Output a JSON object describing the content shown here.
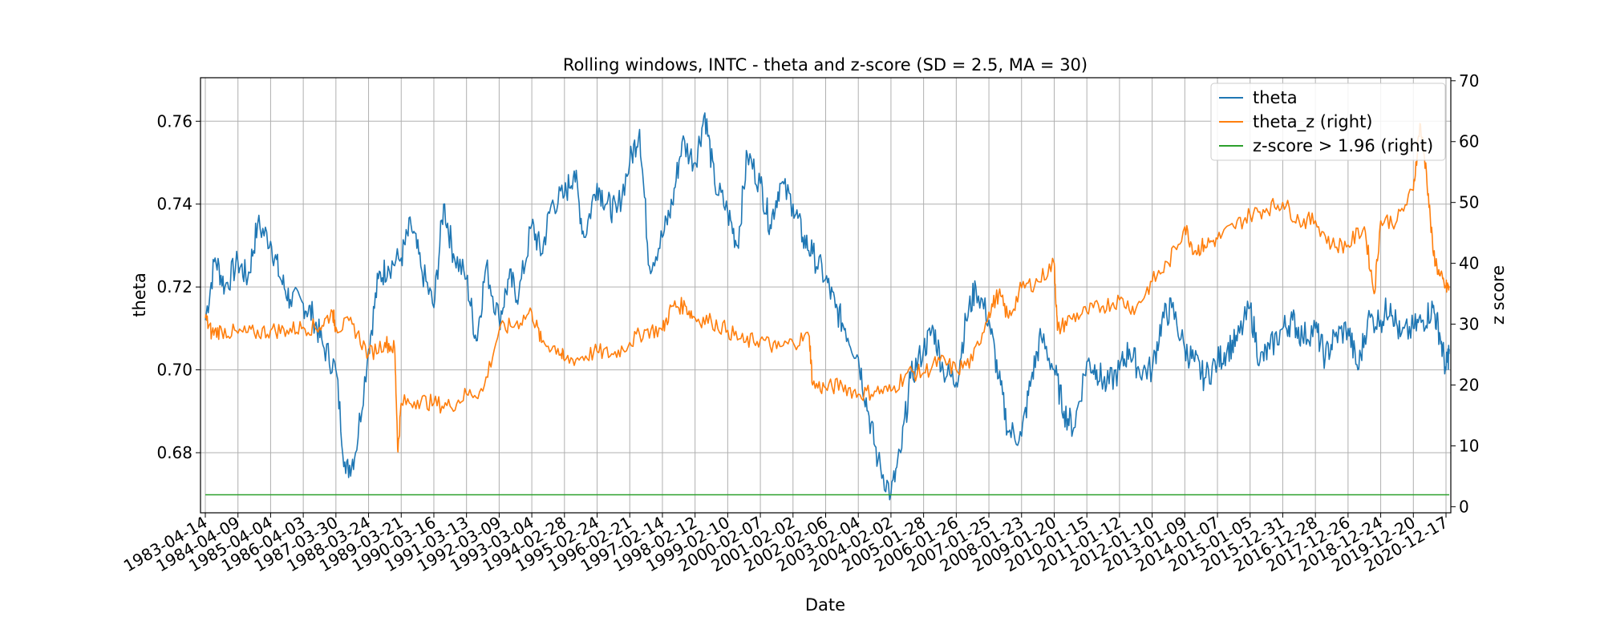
{
  "chart_data": {
    "type": "line",
    "title": "Rolling windows, INTC - theta and z-score (SD = 2.5, MA = 30)",
    "xlabel": "Date",
    "ylabel_left": "theta",
    "ylabel_right": "z score",
    "x_categories": [
      "1983-04-14",
      "1984-04-09",
      "1985-04-04",
      "1986-04-03",
      "1987-03-30",
      "1988-03-24",
      "1989-03-21",
      "1990-03-16",
      "1991-03-13",
      "1992-03-09",
      "1993-03-04",
      "1994-02-28",
      "1995-02-24",
      "1996-02-21",
      "1997-02-14",
      "1998-02-12",
      "1999-02-10",
      "2000-02-07",
      "2001-02-02",
      "2002-02-06",
      "2003-02-04",
      "2004-02-02",
      "2005-01-28",
      "2006-01-26",
      "2007-01-25",
      "2008-01-23",
      "2009-01-20",
      "2010-01-15",
      "2011-01-12",
      "2012-01-10",
      "2013-01-09",
      "2014-01-07",
      "2015-01-05",
      "2015-12-31",
      "2016-12-28",
      "2017-12-26",
      "2018-12-24",
      "2019-12-20",
      "2020-12-17"
    ],
    "y_left_ticks": [
      "0.68",
      "0.70",
      "0.72",
      "0.74",
      "0.76"
    ],
    "y_left_lim": [
      0.6655,
      0.7705
    ],
    "y_right_ticks": [
      "0",
      "10",
      "20",
      "30",
      "40",
      "50",
      "60",
      "70"
    ],
    "y_right_lim": [
      -1.0,
      70.5
    ],
    "grid": true,
    "legend_position": "top-right",
    "colors": {
      "theta": "#1f77b4",
      "theta_z": "#ff7f0e",
      "threshold": "#2ca02c"
    },
    "series": [
      {
        "name": "theta",
        "axis": "left",
        "points": [
          [
            0,
            0.712
          ],
          [
            0.3,
            0.727
          ],
          [
            0.6,
            0.72
          ],
          [
            1,
            0.726
          ],
          [
            1.3,
            0.722
          ],
          [
            1.6,
            0.735
          ],
          [
            2,
            0.731
          ],
          [
            2.3,
            0.722
          ],
          [
            2.6,
            0.717
          ],
          [
            3,
            0.716
          ],
          [
            3.3,
            0.713
          ],
          [
            3.6,
            0.706
          ],
          [
            4,
            0.7
          ],
          [
            4.3,
            0.675
          ],
          [
            4.6,
            0.68
          ],
          [
            5,
            0.705
          ],
          [
            5.3,
            0.722
          ],
          [
            5.6,
            0.725
          ],
          [
            6,
            0.727
          ],
          [
            6.3,
            0.735
          ],
          [
            6.6,
            0.725
          ],
          [
            7,
            0.715
          ],
          [
            7.3,
            0.74
          ],
          [
            7.6,
            0.728
          ],
          [
            8,
            0.722
          ],
          [
            8.3,
            0.707
          ],
          [
            8.6,
            0.725
          ],
          [
            9,
            0.712
          ],
          [
            9.3,
            0.722
          ],
          [
            9.6,
            0.718
          ],
          [
            10,
            0.735
          ],
          [
            10.3,
            0.728
          ],
          [
            10.6,
            0.74
          ],
          [
            11,
            0.742
          ],
          [
            11.3,
            0.748
          ],
          [
            11.6,
            0.732
          ],
          [
            12,
            0.745
          ],
          [
            12.3,
            0.74
          ],
          [
            12.6,
            0.738
          ],
          [
            13,
            0.75
          ],
          [
            13.3,
            0.758
          ],
          [
            13.6,
            0.725
          ],
          [
            14,
            0.732
          ],
          [
            14.3,
            0.74
          ],
          [
            14.6,
            0.755
          ],
          [
            15,
            0.75
          ],
          [
            15.3,
            0.762
          ],
          [
            15.6,
            0.745
          ],
          [
            16,
            0.738
          ],
          [
            16.3,
            0.73
          ],
          [
            16.6,
            0.752
          ],
          [
            17,
            0.745
          ],
          [
            17.3,
            0.735
          ],
          [
            17.6,
            0.745
          ],
          [
            18,
            0.74
          ],
          [
            18.3,
            0.732
          ],
          [
            18.6,
            0.728
          ],
          [
            19,
            0.722
          ],
          [
            19.3,
            0.715
          ],
          [
            19.6,
            0.71
          ],
          [
            20,
            0.703
          ],
          [
            20.3,
            0.69
          ],
          [
            20.6,
            0.678
          ],
          [
            21,
            0.67
          ],
          [
            21.3,
            0.68
          ],
          [
            21.6,
            0.698
          ],
          [
            22,
            0.705
          ],
          [
            22.3,
            0.71
          ],
          [
            22.6,
            0.7
          ],
          [
            23,
            0.697
          ],
          [
            23.3,
            0.712
          ],
          [
            23.6,
            0.72
          ],
          [
            24,
            0.712
          ],
          [
            24.3,
            0.698
          ],
          [
            24.6,
            0.685
          ],
          [
            25,
            0.684
          ],
          [
            25.3,
            0.698
          ],
          [
            25.6,
            0.708
          ],
          [
            26,
            0.7
          ],
          [
            26.3,
            0.69
          ],
          [
            26.6,
            0.686
          ],
          [
            27,
            0.702
          ],
          [
            27.3,
            0.7
          ],
          [
            27.6,
            0.696
          ],
          [
            28,
            0.7
          ],
          [
            28.3,
            0.705
          ],
          [
            28.6,
            0.7
          ],
          [
            29,
            0.7
          ],
          [
            29.3,
            0.712
          ],
          [
            29.6,
            0.715
          ],
          [
            30,
            0.705
          ],
          [
            30.3,
            0.702
          ],
          [
            30.6,
            0.698
          ],
          [
            31,
            0.702
          ],
          [
            31.3,
            0.705
          ],
          [
            31.6,
            0.707
          ],
          [
            32,
            0.715
          ],
          [
            32.3,
            0.702
          ],
          [
            32.6,
            0.705
          ],
          [
            33,
            0.71
          ],
          [
            33.3,
            0.712
          ],
          [
            33.6,
            0.708
          ],
          [
            34,
            0.71
          ],
          [
            34.3,
            0.703
          ],
          [
            34.6,
            0.708
          ],
          [
            35,
            0.71
          ],
          [
            35.3,
            0.7
          ],
          [
            35.6,
            0.712
          ],
          [
            36,
            0.712
          ],
          [
            36.3,
            0.716
          ],
          [
            36.6,
            0.708
          ],
          [
            37,
            0.71
          ],
          [
            37.3,
            0.712
          ],
          [
            37.6,
            0.715
          ],
          [
            37.8,
            0.709
          ],
          [
            38,
            0.7
          ],
          [
            38.1,
            0.705
          ]
        ]
      },
      {
        "name": "theta_z (right)",
        "axis": "right",
        "points": [
          [
            0,
            31
          ],
          [
            0.2,
            28.5
          ],
          [
            0.5,
            29
          ],
          [
            1,
            28.5
          ],
          [
            1.5,
            28.5
          ],
          [
            2,
            29
          ],
          [
            2.5,
            29
          ],
          [
            3,
            29.5
          ],
          [
            3.5,
            29.5
          ],
          [
            3.9,
            32
          ],
          [
            4,
            29.5
          ],
          [
            4.5,
            30
          ],
          [
            5,
            25
          ],
          [
            5.5,
            27
          ],
          [
            5.8,
            26
          ],
          [
            5.9,
            9
          ],
          [
            6,
            17
          ],
          [
            6.5,
            17.5
          ],
          [
            7,
            17
          ],
          [
            7.5,
            16.5
          ],
          [
            8,
            18.5
          ],
          [
            8.5,
            19
          ],
          [
            9,
            29
          ],
          [
            9.5,
            30
          ],
          [
            10,
            32
          ],
          [
            10.3,
            27
          ],
          [
            10.8,
            26
          ],
          [
            11,
            24
          ],
          [
            11.5,
            24.5
          ],
          [
            12,
            25.5
          ],
          [
            12.5,
            25
          ],
          [
            13,
            27
          ],
          [
            13.5,
            29
          ],
          [
            14,
            29
          ],
          [
            14.3,
            33
          ],
          [
            14.7,
            33
          ],
          [
            15,
            31
          ],
          [
            15.5,
            30.5
          ],
          [
            16,
            29
          ],
          [
            16.5,
            27
          ],
          [
            17,
            27.5
          ],
          [
            17.5,
            26
          ],
          [
            18,
            27
          ],
          [
            18.5,
            28
          ],
          [
            18.6,
            20
          ],
          [
            19,
            19.5
          ],
          [
            19.5,
            20
          ],
          [
            20,
            18.5
          ],
          [
            20.5,
            19
          ],
          [
            21,
            19
          ],
          [
            21.5,
            22
          ],
          [
            22,
            22
          ],
          [
            22.5,
            24
          ],
          [
            23,
            22.5
          ],
          [
            23.5,
            24
          ],
          [
            24,
            32
          ],
          [
            24.3,
            35
          ],
          [
            24.6,
            31
          ],
          [
            25,
            36
          ],
          [
            25.5,
            37
          ],
          [
            26,
            40
          ],
          [
            26.1,
            29
          ],
          [
            26.5,
            31
          ],
          [
            27,
            32
          ],
          [
            27.5,
            33
          ],
          [
            28,
            34
          ],
          [
            28.5,
            32.5
          ],
          [
            29,
            37
          ],
          [
            29.5,
            40
          ],
          [
            30,
            46
          ],
          [
            30.3,
            42
          ],
          [
            30.6,
            43
          ],
          [
            31,
            44
          ],
          [
            31.5,
            46
          ],
          [
            32,
            48
          ],
          [
            32.5,
            49
          ],
          [
            33,
            50
          ],
          [
            33.5,
            47
          ],
          [
            34,
            47
          ],
          [
            34.5,
            43
          ],
          [
            35,
            43
          ],
          [
            35.5,
            46
          ],
          [
            35.8,
            35
          ],
          [
            36,
            47
          ],
          [
            36.5,
            47
          ],
          [
            37,
            52
          ],
          [
            37.2,
            63
          ],
          [
            37.4,
            55
          ],
          [
            37.6,
            42
          ],
          [
            37.8,
            38
          ],
          [
            38,
            36
          ],
          [
            38.1,
            36
          ]
        ]
      },
      {
        "name": "z-score > 1.96 (right)",
        "axis": "right",
        "points": [
          [
            0,
            1.96
          ],
          [
            38.1,
            1.96
          ]
        ]
      }
    ]
  }
}
